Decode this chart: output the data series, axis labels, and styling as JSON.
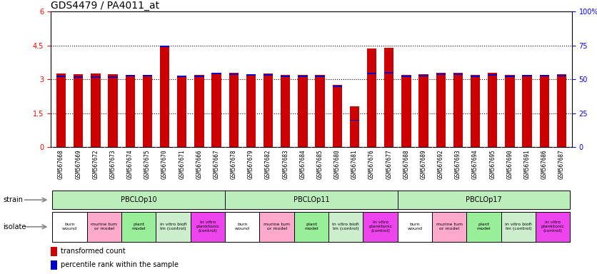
{
  "title": "GDS4479 / PA4011_at",
  "samples": [
    "GSM567668",
    "GSM567669",
    "GSM567672",
    "GSM567673",
    "GSM567674",
    "GSM567675",
    "GSM567670",
    "GSM567671",
    "GSM567666",
    "GSM567667",
    "GSM567678",
    "GSM567679",
    "GSM567682",
    "GSM567683",
    "GSM567684",
    "GSM567685",
    "GSM567680",
    "GSM567681",
    "GSM567676",
    "GSM567677",
    "GSM567688",
    "GSM567689",
    "GSM567692",
    "GSM567693",
    "GSM567694",
    "GSM567695",
    "GSM567690",
    "GSM567691",
    "GSM567686",
    "GSM567687"
  ],
  "red_values": [
    3.25,
    3.22,
    3.26,
    3.24,
    3.2,
    3.21,
    4.42,
    3.16,
    3.18,
    3.28,
    3.3,
    3.22,
    3.27,
    3.19,
    3.19,
    3.19,
    2.75,
    1.8,
    4.35,
    4.4,
    3.18,
    3.22,
    3.28,
    3.3,
    3.19,
    3.28,
    3.19,
    3.21,
    3.21,
    3.22
  ],
  "blue_tops": [
    3.17,
    3.13,
    3.13,
    3.13,
    3.18,
    3.18,
    4.48,
    3.17,
    3.16,
    3.29,
    3.26,
    3.22,
    3.22,
    3.17,
    3.16,
    3.16,
    2.72,
    1.22,
    3.29,
    3.32,
    3.16,
    3.18,
    3.26,
    3.27,
    3.16,
    3.22,
    3.15,
    3.19,
    3.19,
    3.19
  ],
  "blue_bottoms": [
    3.11,
    3.07,
    3.07,
    3.07,
    3.12,
    3.12,
    4.42,
    3.11,
    3.1,
    3.23,
    3.2,
    3.16,
    3.16,
    3.11,
    3.1,
    3.1,
    2.66,
    1.16,
    3.23,
    3.26,
    3.1,
    3.12,
    3.2,
    3.21,
    3.1,
    3.16,
    3.09,
    3.13,
    3.13,
    3.13
  ],
  "ylim_left": [
    0,
    6
  ],
  "ylim_right": [
    0,
    100
  ],
  "yticks_left": [
    0,
    1.5,
    3.0,
    4.5,
    6.0
  ],
  "yticks_right": [
    0,
    25,
    50,
    75,
    100
  ],
  "dotted_lines": [
    1.5,
    3.0,
    4.5
  ],
  "strains": [
    {
      "label": "PBCLOp10",
      "start": 0,
      "end": 9
    },
    {
      "label": "PBCLOp11",
      "start": 10,
      "end": 19
    },
    {
      "label": "PBCLOp17",
      "start": 20,
      "end": 29
    }
  ],
  "isolates": [
    {
      "label": "burn\nwound",
      "color": "#ffffff",
      "start": 0,
      "end": 1
    },
    {
      "label": "murine tum\nor model",
      "color": "#ffaacc",
      "start": 2,
      "end": 3
    },
    {
      "label": "plant\nmodel",
      "color": "#99ee99",
      "start": 4,
      "end": 5
    },
    {
      "label": "in vitro biofi\nlm (control)",
      "color": "#cceecc",
      "start": 6,
      "end": 7
    },
    {
      "label": "in vitro\nplanktonic\n(control)",
      "color": "#ee44ee",
      "start": 8,
      "end": 9
    },
    {
      "label": "burn\nwound",
      "color": "#ffffff",
      "start": 10,
      "end": 11
    },
    {
      "label": "murine tum\nor model",
      "color": "#ffaacc",
      "start": 12,
      "end": 13
    },
    {
      "label": "plant\nmodel",
      "color": "#99ee99",
      "start": 14,
      "end": 15
    },
    {
      "label": "in vitro biofi\nlm (control)",
      "color": "#cceecc",
      "start": 16,
      "end": 17
    },
    {
      "label": "in vitro\nplanktonic\n(control)",
      "color": "#ee44ee",
      "start": 18,
      "end": 19
    },
    {
      "label": "burn\nwound",
      "color": "#ffffff",
      "start": 20,
      "end": 21
    },
    {
      "label": "murine tum\nor model",
      "color": "#ffaacc",
      "start": 22,
      "end": 23
    },
    {
      "label": "plant\nmodel",
      "color": "#99ee99",
      "start": 24,
      "end": 25
    },
    {
      "label": "in vitro biofi\nlm (control)",
      "color": "#cceecc",
      "start": 26,
      "end": 27
    },
    {
      "label": "in vitro\nplanktonic\n(control)",
      "color": "#ee44ee",
      "start": 28,
      "end": 29
    }
  ],
  "strain_color": "#bbeebb",
  "bar_color_red": "#cc0000",
  "bar_color_blue": "#0000cc",
  "bar_width": 0.55,
  "tick_label_fontsize": 5.5,
  "label_fontsize": 7,
  "title_fontsize": 10,
  "plot_bg": "#ffffff",
  "xtick_bg": "#d8d8d8"
}
